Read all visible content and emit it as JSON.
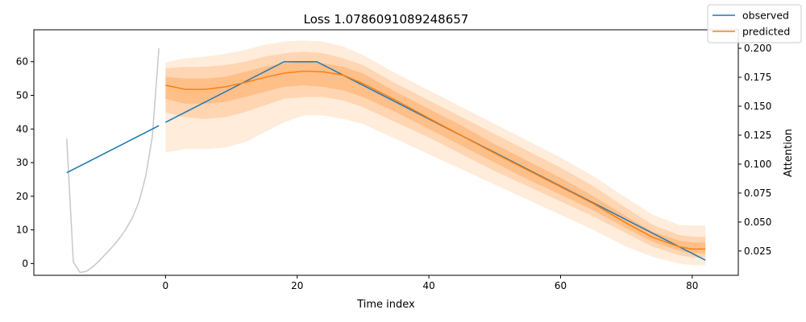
{
  "chart_data": {
    "type": "line",
    "title": "Loss 1.0786091089248657",
    "xlabel": "Time index",
    "ylabel": "",
    "y2label": "Attention",
    "xlim": [
      -20,
      87
    ],
    "ylim": [
      -3.5,
      69.5
    ],
    "y2lim": [
      0.004,
      0.216
    ],
    "xticks": [
      0,
      20,
      40,
      60,
      80
    ],
    "yticks": [
      0,
      10,
      20,
      30,
      40,
      50,
      60
    ],
    "y2ticks": [
      0.025,
      0.05,
      0.075,
      0.1,
      0.125,
      0.15,
      0.175,
      0.2
    ],
    "y2ticklabels": [
      "0.025",
      "0.050",
      "0.075",
      "0.100",
      "0.125",
      "0.150",
      "0.175",
      "0.200"
    ],
    "legend": {
      "position": "top-right",
      "entries": [
        {
          "label": "observed",
          "color": "#1f77b4"
        },
        {
          "label": "predicted",
          "color": "#ff7f0e"
        }
      ]
    },
    "grid": false,
    "series": [
      {
        "name": "observed",
        "color": "#1f77b4",
        "axis": "left",
        "segments": [
          {
            "x": [
              -15,
              -1
            ],
            "y": [
              27,
              41
            ]
          },
          {
            "x": [
              0,
              18,
              23,
              82
            ],
            "y": [
              42,
              60,
              60,
              1
            ]
          }
        ]
      },
      {
        "name": "predicted",
        "color": "#ff7f0e",
        "axis": "left",
        "x": [
          0,
          3,
          6,
          9,
          12,
          15,
          18,
          21,
          24,
          27,
          30,
          35,
          40,
          45,
          50,
          55,
          60,
          65,
          70,
          74,
          78,
          80,
          82
        ],
        "y": [
          53,
          51.8,
          51.8,
          52.5,
          53.8,
          55.3,
          56.6,
          57.2,
          57,
          56,
          53.5,
          48.5,
          43.2,
          38,
          32.8,
          27.8,
          22.8,
          17.8,
          12,
          7.8,
          5,
          4.3,
          4.3
        ],
        "bands": [
          {
            "opacity": 0.15,
            "lower": [
              33,
              34,
              34,
              34.5,
              36,
              39,
              42,
              44,
              44,
              43,
              41.5,
              37,
              32.5,
              28,
              23.5,
              19,
              14.5,
              10,
              5,
              2,
              0,
              -0.5,
              -0.5
            ],
            "upper": [
              59.8,
              61,
              61.5,
              62.3,
              63.5,
              65,
              66,
              66.3,
              66,
              64.5,
              62,
              56.5,
              51.5,
              46.5,
              41.5,
              36.5,
              31.5,
              26,
              19.5,
              14.5,
              11.5,
              11.3,
              11.3
            ]
          },
          {
            "opacity": 0.2,
            "lower": [
              45,
              43.5,
              43,
              43.5,
              45,
              47,
              49,
              49.5,
              49.5,
              48.5,
              46.5,
              42,
              37.5,
              32.5,
              27.5,
              23,
              18.5,
              14,
              9,
              5,
              2.5,
              1.8,
              1.8
            ],
            "upper": [
              58,
              58.5,
              58.5,
              59,
              60,
              61.5,
              62.5,
              63,
              62.5,
              61,
              59,
              53.5,
              48.5,
              43.5,
              38.5,
              33.5,
              28.5,
              23,
              16.5,
              11.5,
              8.5,
              8,
              8
            ]
          },
          {
            "opacity": 0.25,
            "lower": [
              49,
              47.5,
              47.5,
              48,
              49.5,
              51,
              52.5,
              53,
              52.5,
              51.5,
              49.5,
              45,
              40,
              35,
              30,
              25,
              20.5,
              15.8,
              10.5,
              6.5,
              3.8,
              3,
              3
            ]
          },
          {
            "opacity": 0.25,
            "upper": [
              55.5,
              55,
              55,
              55.5,
              57,
              58.5,
              59.5,
              60,
              59.5,
              58.5,
              56.5,
              51,
              46,
              41,
              35.5,
              30.5,
              25.5,
              20,
              14,
              9.5,
              6.8,
              6.3,
              6.3
            ]
          }
        ]
      },
      {
        "name": "attention",
        "color": "#c8c8c8",
        "axis": "right",
        "x": [
          -15,
          -14,
          -13,
          -12,
          -11,
          -10,
          -9,
          -8,
          -7,
          -6,
          -5,
          -4,
          -3,
          -2,
          -1
        ],
        "y": [
          0.122,
          0.0155,
          0.0065,
          0.0075,
          0.0115,
          0.017,
          0.023,
          0.029,
          0.036,
          0.044,
          0.054,
          0.068,
          0.09,
          0.124,
          0.2
        ]
      }
    ]
  }
}
